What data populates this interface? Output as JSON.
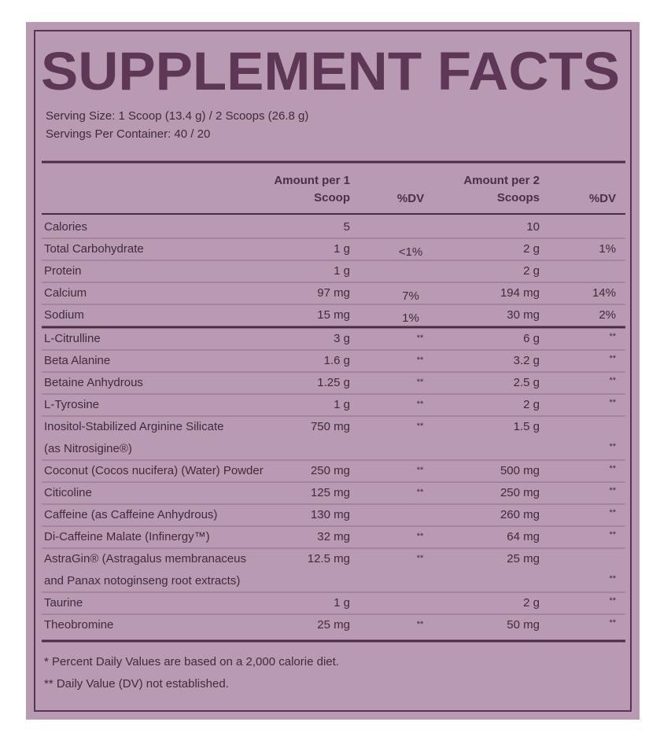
{
  "header": {
    "title": "SUPPLEMENT FACTS",
    "serving_size": "Serving Size: 1 Scoop (13.4 g) / 2 Scoops (26.8 g)",
    "servings_per_container": "Servings Per Container: 40 / 20"
  },
  "table": {
    "columns": [
      [
        "Amount per 1",
        "Scoop"
      ],
      "%DV",
      [
        "Amount per 2",
        "Scoops"
      ],
      "%DV"
    ],
    "sections": [
      {
        "rows": [
          {
            "name": [
              "Calories"
            ],
            "amount1": "5",
            "amount2": "10"
          },
          {
            "name": [
              "Total Carbohydrate"
            ],
            "amount1": "1 g",
            "dv1": "<1%",
            "amount2": "2 g",
            "dv2": "1%"
          },
          {
            "name": [
              "Protein"
            ],
            "amount1": "1 g",
            "amount2": "2 g"
          },
          {
            "name": [
              "Calcium"
            ],
            "amount1": "97 mg",
            "dv1": "7%",
            "amount2": "194 mg",
            "dv2": "14%"
          },
          {
            "name": [
              "Sodium"
            ],
            "amount1": "15 mg",
            "dv1": "1%",
            "amount2": "30 mg",
            "dv2": "2%"
          }
        ]
      },
      {
        "rows": [
          {
            "name": [
              "L-Citrulline"
            ],
            "amount1": "3 g",
            "dv1": "**",
            "amount2": "6 g",
            "dv2": "**"
          },
          {
            "name": [
              "Beta Alanine"
            ],
            "amount1": "1.6 g",
            "dv1": "**",
            "amount2": "3.2 g",
            "dv2": "**"
          },
          {
            "name": [
              "Betaine Anhydrous"
            ],
            "amount1": "1.25 g",
            "dv1": "**",
            "amount2": "2.5 g",
            "dv2": "**"
          },
          {
            "name": [
              "L-Tyrosine"
            ],
            "amount1": "1 g",
            "dv1": "**",
            "amount2": "2 g",
            "dv2": "**"
          },
          {
            "name": [
              "Inositol-Stabilized Arginine Silicate",
              "(as Nitrosigine®)"
            ],
            "amount1": "750 mg",
            "dv1": "**",
            "amount2": "1.5 g",
            "dv2": "**"
          },
          {
            "name": [
              "Coconut (Cocos nucifera) (Water) Powder"
            ],
            "amount1": "250 mg",
            "dv1": "**",
            "amount2": "500 mg",
            "dv2": "**"
          },
          {
            "name": [
              "Citicoline"
            ],
            "amount1": "125 mg",
            "dv1": "**",
            "amount2": "250 mg",
            "dv2": "**"
          },
          {
            "name": [
              "Caffeine (as Caffeine Anhydrous)"
            ],
            "amount1": "130 mg",
            "amount2": "260 mg",
            "dv2": "**"
          },
          {
            "name": [
              "Di-Caffeine Malate (Infinergy™)"
            ],
            "amount1": "32 mg",
            "dv1": "**",
            "amount2": "64 mg",
            "dv2": "**"
          },
          {
            "name": [
              "AstraGin® (Astragalus membranaceus",
              "and Panax notoginseng root extracts)"
            ],
            "amount1": "12.5 mg",
            "dv1": "**",
            "amount2": "25 mg",
            "dv2": "**"
          },
          {
            "name": [
              "Taurine"
            ],
            "amount1": "1 g",
            "amount2": "2 g",
            "dv2": "**"
          },
          {
            "name": [
              "Theobromine"
            ],
            "amount1": "25 mg",
            "dv1": "**",
            "amount2": "50 mg",
            "dv2": "**"
          }
        ]
      }
    ]
  },
  "footnotes": [
    "* Percent Daily Values are based on a 2,000 calorie diet.",
    "** Daily Value (DV) not established."
  ]
}
